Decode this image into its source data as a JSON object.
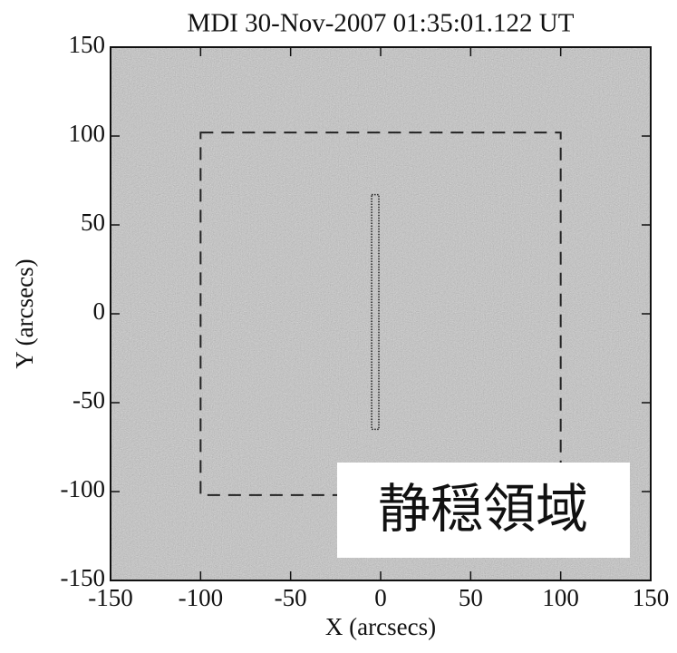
{
  "chart_data": {
    "type": "image",
    "title": "MDI 30-Nov-2007 01:35:01.122 UT",
    "x_label": "X (arcsecs)",
    "y_label": "Y (arcsecs)",
    "xlim": [
      -150,
      150
    ],
    "ylim": [
      -150,
      150
    ],
    "xticks": [
      -150,
      -100,
      -50,
      0,
      50,
      100,
      150
    ],
    "yticks": [
      -150,
      -100,
      -50,
      0,
      50,
      100,
      150
    ],
    "boxes": [
      {
        "style": "dashed",
        "x": [
          -100,
          100
        ],
        "y": [
          -102,
          102
        ]
      },
      {
        "style": "dotted",
        "x": [
          -5,
          -1
        ],
        "y": [
          -65,
          67
        ]
      }
    ],
    "annotation": "静穏領域"
  }
}
